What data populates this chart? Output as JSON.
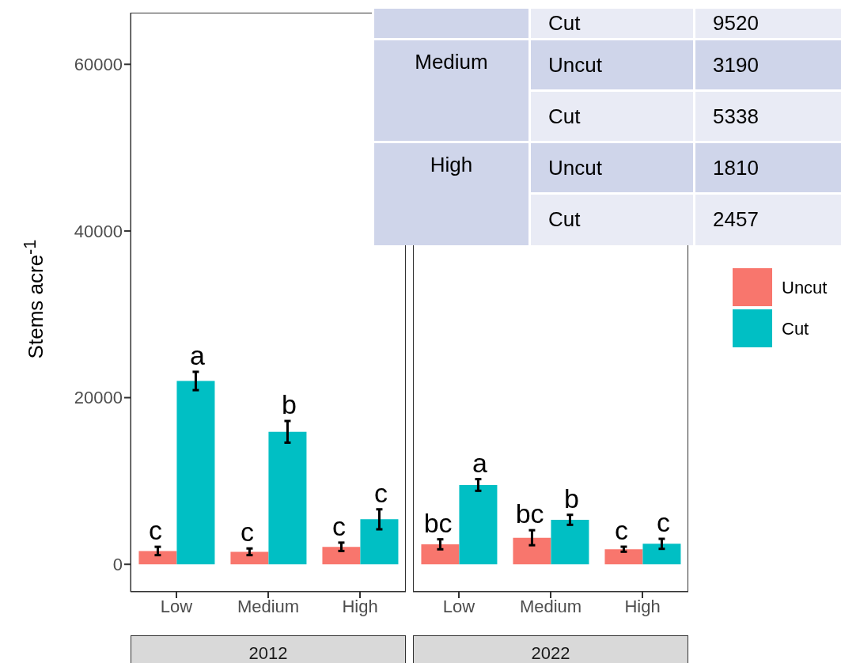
{
  "chart_data": [
    {
      "type": "bar",
      "title": "2012",
      "ylabel": "Stems acre$^{-1}$",
      "categories": [
        "Low",
        "Medium",
        "High"
      ],
      "legend": "right",
      "series": [
        {
          "name": "Uncut",
          "color": "#f8766d",
          "values": [
            1600,
            1500,
            2100
          ],
          "errors": [
            500,
            400,
            500
          ]
        },
        {
          "name": "Cut",
          "color": "#00bfc4",
          "values": [
            22000,
            15900,
            5400
          ],
          "errors": [
            1100,
            1300,
            1200
          ]
        }
      ],
      "ylim": [
        -3300,
        66200
      ],
      "yticks": [
        0,
        20000,
        40000,
        60000
      ],
      "annotations": [
        {
          "text": "c",
          "x": "Low",
          "y": 1600
        },
        {
          "text": "a",
          "x": "Low",
          "y": 22000
        },
        {
          "text": "c",
          "x": "Medium",
          "y": 1500
        },
        {
          "text": "b",
          "x": "Medium",
          "y": 15900
        },
        {
          "text": "c",
          "x": "High",
          "y": 2100
        },
        {
          "text": "c",
          "x": "High",
          "y": 5400
        }
      ]
    },
    {
      "type": "bar",
      "title": "2022",
      "categories": [
        "Low",
        "Medium",
        "High"
      ],
      "series": [
        {
          "color": "#f8766d",
          "values": [
            2400,
            3190,
            1810
          ],
          "errors": [
            600,
            900,
            300
          ]
        },
        {
          "color": "#00bfc4",
          "values": [
            9520,
            5338,
            2457
          ],
          "errors": [
            700,
            600,
            600
          ]
        }
      ],
      "ylim": [
        -3300,
        66200
      ],
      "yticks": [
        0,
        20000,
        40000,
        60000
      ],
      "tick_labels": "x",
      "annotations": [
        {
          "text": "bc",
          "x": "Low",
          "y": 2400
        },
        {
          "text": "a",
          "x": "Low",
          "y": 9520
        },
        {
          "text": "bc",
          "x": "Medium",
          "y": 3190
        },
        {
          "text": "b",
          "x": "Medium",
          "y": 5338
        },
        {
          "text": "c",
          "x": "High",
          "y": 1810
        },
        {
          "text": "c",
          "x": "High",
          "y": 2457
        }
      ]
    },
    {
      "type": "other",
      "annotations": [
        "Cut",
        "9520",
        "Medium",
        "Uncut",
        "3190",
        "Cut",
        "5338",
        "High",
        "Uncut",
        "1810",
        "Cut",
        "2457"
      ]
    }
  ]
}
